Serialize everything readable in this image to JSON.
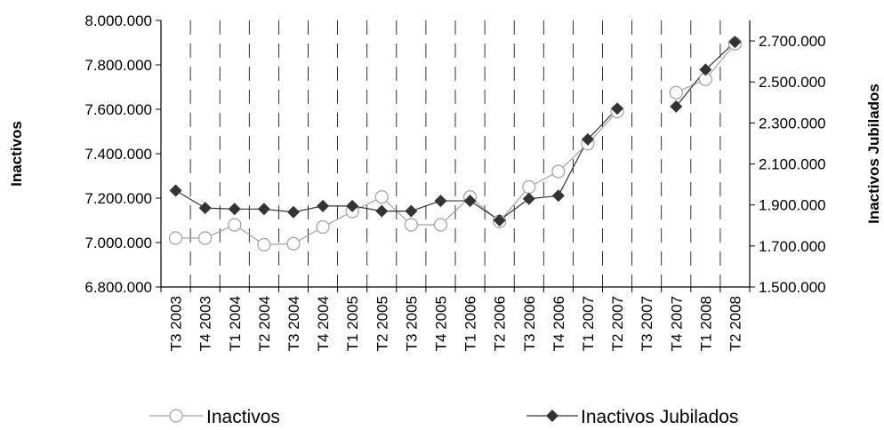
{
  "chart_data": {
    "type": "line",
    "categories": [
      "T3 2003",
      "T4 2003",
      "T1 2004",
      "T2 2004",
      "T3 2004",
      "T4 2004",
      "T1 2005",
      "T2 2005",
      "T3 2005",
      "T4 2005",
      "T1 2006",
      "T2 2006",
      "T3 2006",
      "T4 2006",
      "T1 2007",
      "T2 2007",
      "T3 2007",
      "T4 2007",
      "T1 2008",
      "T2 2008"
    ],
    "left_axis": {
      "label": "Inactivos",
      "ylim": [
        6800000,
        8000000
      ],
      "ticks": [
        "6.800.000",
        "7.000.000",
        "7.200.000",
        "7.400.000",
        "7.600.000",
        "7.800.000",
        "8.000.000"
      ]
    },
    "right_axis": {
      "label": "Inactivos Jubilados",
      "ylim": [
        1500000,
        2800000
      ],
      "ticks": [
        "1.500.000",
        "1.700.000",
        "1.900.000",
        "2.100.000",
        "2.300.000",
        "2.500.000",
        "2.700.000"
      ]
    },
    "series": [
      {
        "name": "Inactivos",
        "axis": "left",
        "marker": "circle",
        "color": "#a0a0a0",
        "values": [
          7020000,
          7020000,
          7080000,
          6990000,
          6995000,
          7070000,
          7140000,
          7205000,
          7080000,
          7080000,
          7205000,
          7095000,
          7250000,
          7320000,
          7445000,
          7590000,
          null,
          7675000,
          7735000,
          7895000
        ]
      },
      {
        "name": "Inactivos Jubilados",
        "axis": "right",
        "marker": "diamond",
        "color": "#333333",
        "values": [
          1970000,
          1885000,
          1880000,
          1880000,
          1865000,
          1895000,
          1895000,
          1870000,
          1870000,
          1920000,
          1920000,
          1825000,
          1930000,
          1945000,
          2220000,
          2370000,
          null,
          2380000,
          2560000,
          2695000
        ]
      }
    ],
    "grid": {
      "vertical": "dashed",
      "horizontal": false
    },
    "legend": {
      "position": "bottom"
    }
  }
}
